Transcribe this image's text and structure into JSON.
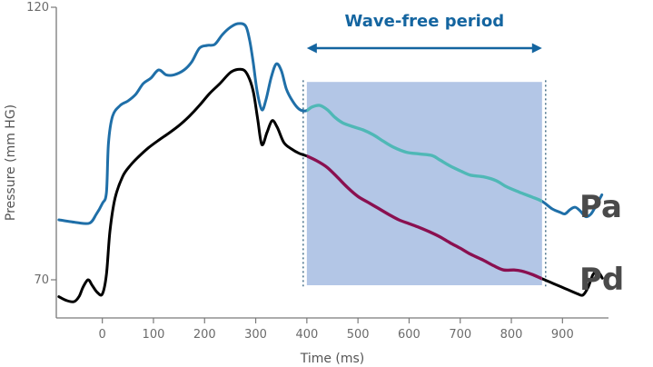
{
  "chart_data": {
    "type": "line",
    "xlabel": "Time (ms)",
    "ylabel": "Pressure (mm HG)",
    "xlim": [
      -90,
      990
    ],
    "ylim": [
      63,
      120
    ],
    "x_ticks": [
      0,
      100,
      200,
      300,
      400,
      500,
      600,
      700,
      800,
      900
    ],
    "y_ticks": [
      70,
      120
    ],
    "wave_free_period": {
      "label": "Wave-free period",
      "start": 400,
      "end": 860
    },
    "series": [
      {
        "name": "Pa",
        "color": "#1f6fa8",
        "highlight_color": "#4fb8b6",
        "points": [
          [
            -85,
            81.0
          ],
          [
            -50,
            80.5
          ],
          [
            -25,
            80.4
          ],
          [
            -12,
            82.0
          ],
          [
            0,
            84.0
          ],
          [
            8,
            86.0
          ],
          [
            12,
            95.0
          ],
          [
            20,
            100.0
          ],
          [
            35,
            102.0
          ],
          [
            50,
            102.8
          ],
          [
            65,
            104.0
          ],
          [
            80,
            106.0
          ],
          [
            95,
            107.0
          ],
          [
            110,
            108.5
          ],
          [
            125,
            107.6
          ],
          [
            140,
            107.6
          ],
          [
            160,
            108.5
          ],
          [
            175,
            110.0
          ],
          [
            190,
            112.5
          ],
          [
            205,
            113.0
          ],
          [
            220,
            113.2
          ],
          [
            235,
            115.0
          ],
          [
            250,
            116.3
          ],
          [
            265,
            117.0
          ],
          [
            280,
            116.6
          ],
          [
            288,
            114.0
          ],
          [
            295,
            110.0
          ],
          [
            303,
            104.5
          ],
          [
            312,
            101.2
          ],
          [
            320,
            103.0
          ],
          [
            330,
            107.0
          ],
          [
            340,
            109.6
          ],
          [
            350,
            108.4
          ],
          [
            360,
            105.0
          ],
          [
            372,
            102.8
          ],
          [
            385,
            101.3
          ],
          [
            398,
            101.0
          ],
          [
            410,
            101.7
          ],
          [
            425,
            102.0
          ],
          [
            440,
            101.2
          ],
          [
            455,
            99.8
          ],
          [
            470,
            98.8
          ],
          [
            490,
            98.1
          ],
          [
            510,
            97.5
          ],
          [
            530,
            96.6
          ],
          [
            550,
            95.4
          ],
          [
            570,
            94.3
          ],
          [
            595,
            93.4
          ],
          [
            620,
            93.1
          ],
          [
            645,
            92.8
          ],
          [
            660,
            92.0
          ],
          [
            680,
            90.9
          ],
          [
            700,
            90.0
          ],
          [
            720,
            89.2
          ],
          [
            745,
            88.9
          ],
          [
            770,
            88.2
          ],
          [
            790,
            87.1
          ],
          [
            815,
            86.1
          ],
          [
            840,
            85.2
          ],
          [
            860,
            84.4
          ],
          [
            880,
            83.0
          ],
          [
            895,
            82.4
          ],
          [
            905,
            82.1
          ],
          [
            915,
            82.9
          ],
          [
            925,
            83.3
          ],
          [
            935,
            82.6
          ],
          [
            945,
            81.6
          ],
          [
            955,
            82.0
          ],
          [
            965,
            83.5
          ],
          [
            977,
            85.6
          ]
        ]
      },
      {
        "name": "Pd",
        "color": "#000000",
        "highlight_color": "#8a1050",
        "points": [
          [
            -85,
            66.9
          ],
          [
            -70,
            66.2
          ],
          [
            -55,
            66.0
          ],
          [
            -45,
            67.0
          ],
          [
            -38,
            68.6
          ],
          [
            -28,
            70.0
          ],
          [
            -20,
            69.0
          ],
          [
            -10,
            67.7
          ],
          [
            0,
            67.4
          ],
          [
            8,
            71.0
          ],
          [
            15,
            79.0
          ],
          [
            25,
            85.0
          ],
          [
            40,
            89.0
          ],
          [
            55,
            91.0
          ],
          [
            70,
            92.5
          ],
          [
            90,
            94.2
          ],
          [
            110,
            95.6
          ],
          [
            130,
            96.9
          ],
          [
            150,
            98.3
          ],
          [
            170,
            100.0
          ],
          [
            190,
            102.0
          ],
          [
            210,
            104.2
          ],
          [
            230,
            106.0
          ],
          [
            250,
            108.0
          ],
          [
            265,
            108.6
          ],
          [
            278,
            108.4
          ],
          [
            288,
            106.8
          ],
          [
            296,
            104.2
          ],
          [
            304,
            99.4
          ],
          [
            312,
            94.8
          ],
          [
            322,
            97.0
          ],
          [
            332,
            99.2
          ],
          [
            342,
            98.0
          ],
          [
            355,
            95.2
          ],
          [
            370,
            94.0
          ],
          [
            385,
            93.2
          ],
          [
            400,
            92.7
          ],
          [
            420,
            91.8
          ],
          [
            440,
            90.6
          ],
          [
            460,
            88.8
          ],
          [
            480,
            86.9
          ],
          [
            500,
            85.3
          ],
          [
            520,
            84.2
          ],
          [
            540,
            83.1
          ],
          [
            560,
            82.0
          ],
          [
            580,
            81.0
          ],
          [
            600,
            80.3
          ],
          [
            620,
            79.6
          ],
          [
            640,
            78.8
          ],
          [
            660,
            77.9
          ],
          [
            680,
            76.8
          ],
          [
            700,
            75.8
          ],
          [
            720,
            74.7
          ],
          [
            745,
            73.6
          ],
          [
            765,
            72.6
          ],
          [
            785,
            71.8
          ],
          [
            805,
            71.8
          ],
          [
            820,
            71.6
          ],
          [
            840,
            71.0
          ],
          [
            860,
            70.2
          ],
          [
            875,
            69.6
          ],
          [
            890,
            69.0
          ],
          [
            905,
            68.4
          ],
          [
            920,
            67.8
          ],
          [
            930,
            67.4
          ],
          [
            940,
            67.2
          ],
          [
            950,
            68.6
          ],
          [
            960,
            71.0
          ],
          [
            970,
            71.4
          ],
          [
            978,
            70.3
          ]
        ]
      }
    ]
  }
}
